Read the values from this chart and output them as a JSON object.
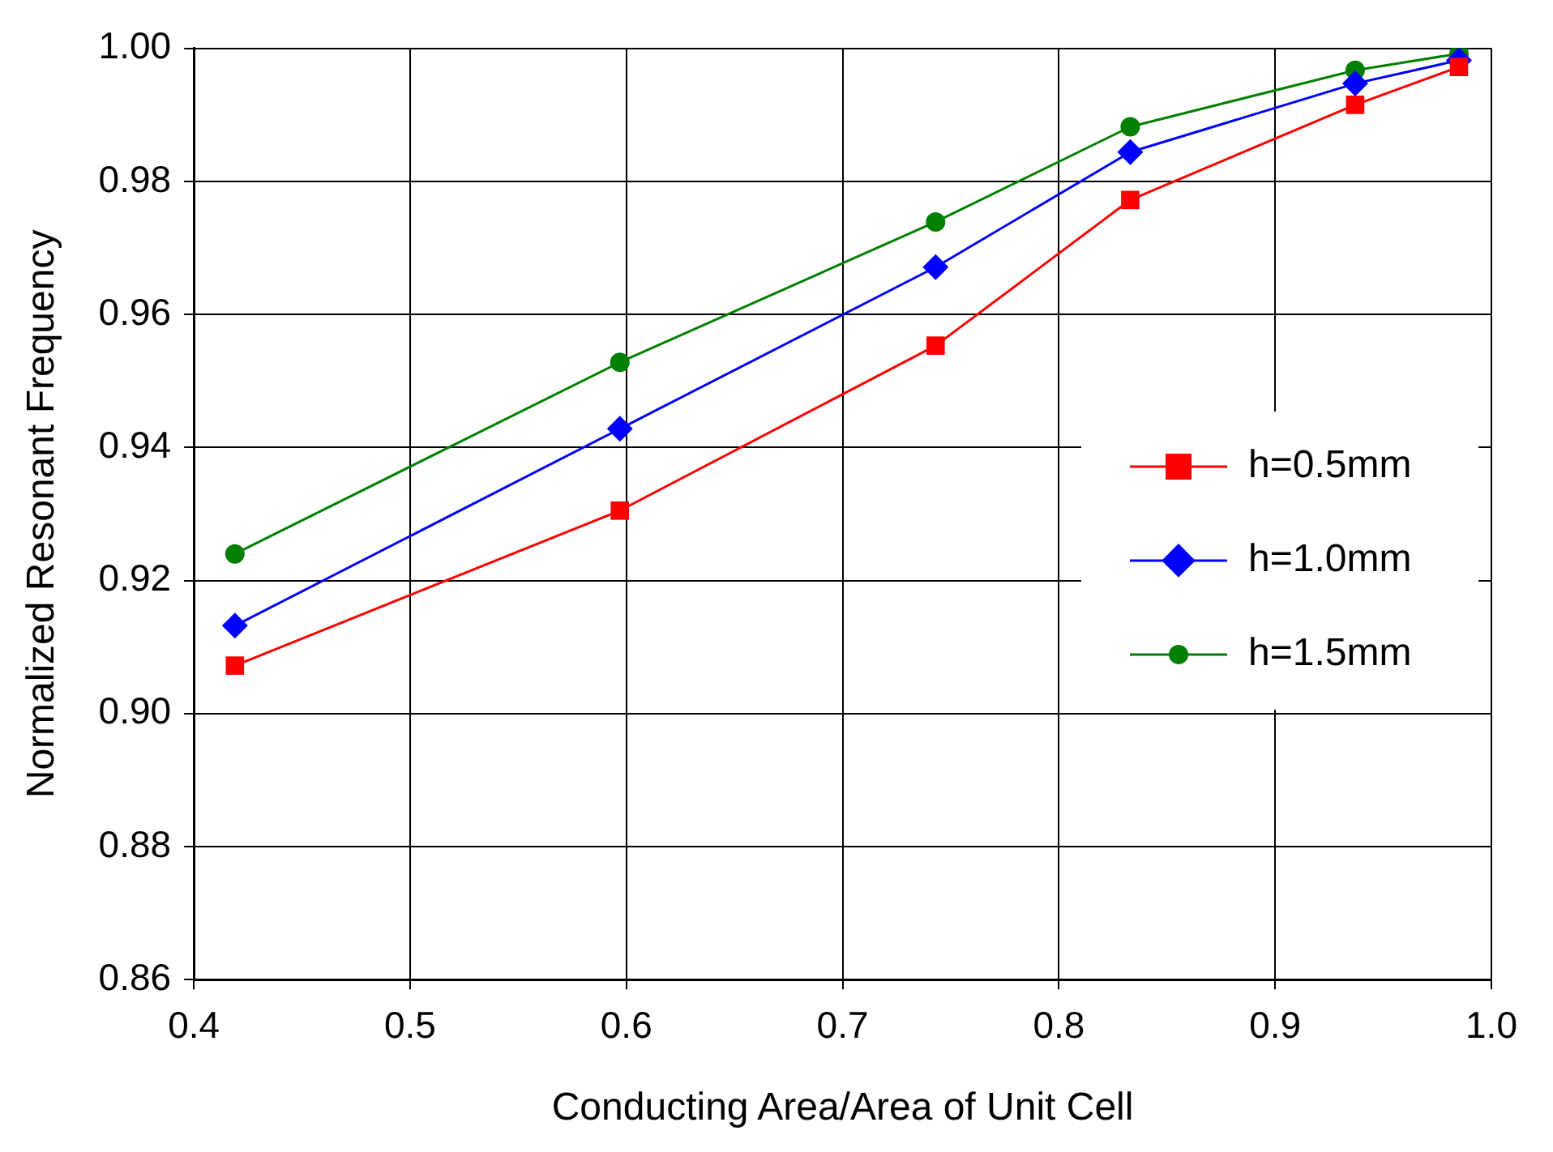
{
  "chart_data": {
    "type": "line",
    "xlabel": "Conducting Area/Area of Unit Cell",
    "ylabel": "Normalized Resonant Frequency",
    "xlim": [
      0.4,
      1.0
    ],
    "xticks": [
      0.4,
      0.5,
      0.6,
      0.7,
      0.8,
      0.9,
      {
        "value": 1.0,
        "label": "1.0"
      }
    ],
    "ylim": [
      0.86,
      1.0
    ],
    "yticks": [
      0.86,
      0.88,
      {
        "value": 0.9,
        "label": "0.90"
      },
      0.92,
      0.94,
      0.96,
      0.98,
      {
        "value": 1.0,
        "label": "1.00"
      }
    ],
    "grid": true,
    "legend": "right",
    "series": [
      {
        "name": "h=0.5mm",
        "color": "#ff0000",
        "marker": "square",
        "x": [
          0.419,
          0.597,
          0.743,
          0.833,
          0.937,
          0.985
        ],
        "values": [
          0.9072,
          0.9305,
          0.9553,
          0.9772,
          0.9915,
          0.9972
        ]
      },
      {
        "name": "h=1.0mm",
        "color": "#0000ff",
        "marker": "diamond",
        "x": [
          0.419,
          0.597,
          0.743,
          0.833,
          0.937,
          0.985
        ],
        "values": [
          0.9132,
          0.9428,
          0.9671,
          0.9844,
          0.9947,
          0.9982
        ]
      },
      {
        "name": "h=1.5mm",
        "color": "#008000",
        "marker": "circle",
        "x": [
          0.419,
          0.597,
          0.743,
          0.833,
          0.937,
          0.985
        ],
        "values": [
          0.924,
          0.9528,
          0.9739,
          0.9882,
          0.9967,
          0.9992
        ]
      }
    ]
  }
}
